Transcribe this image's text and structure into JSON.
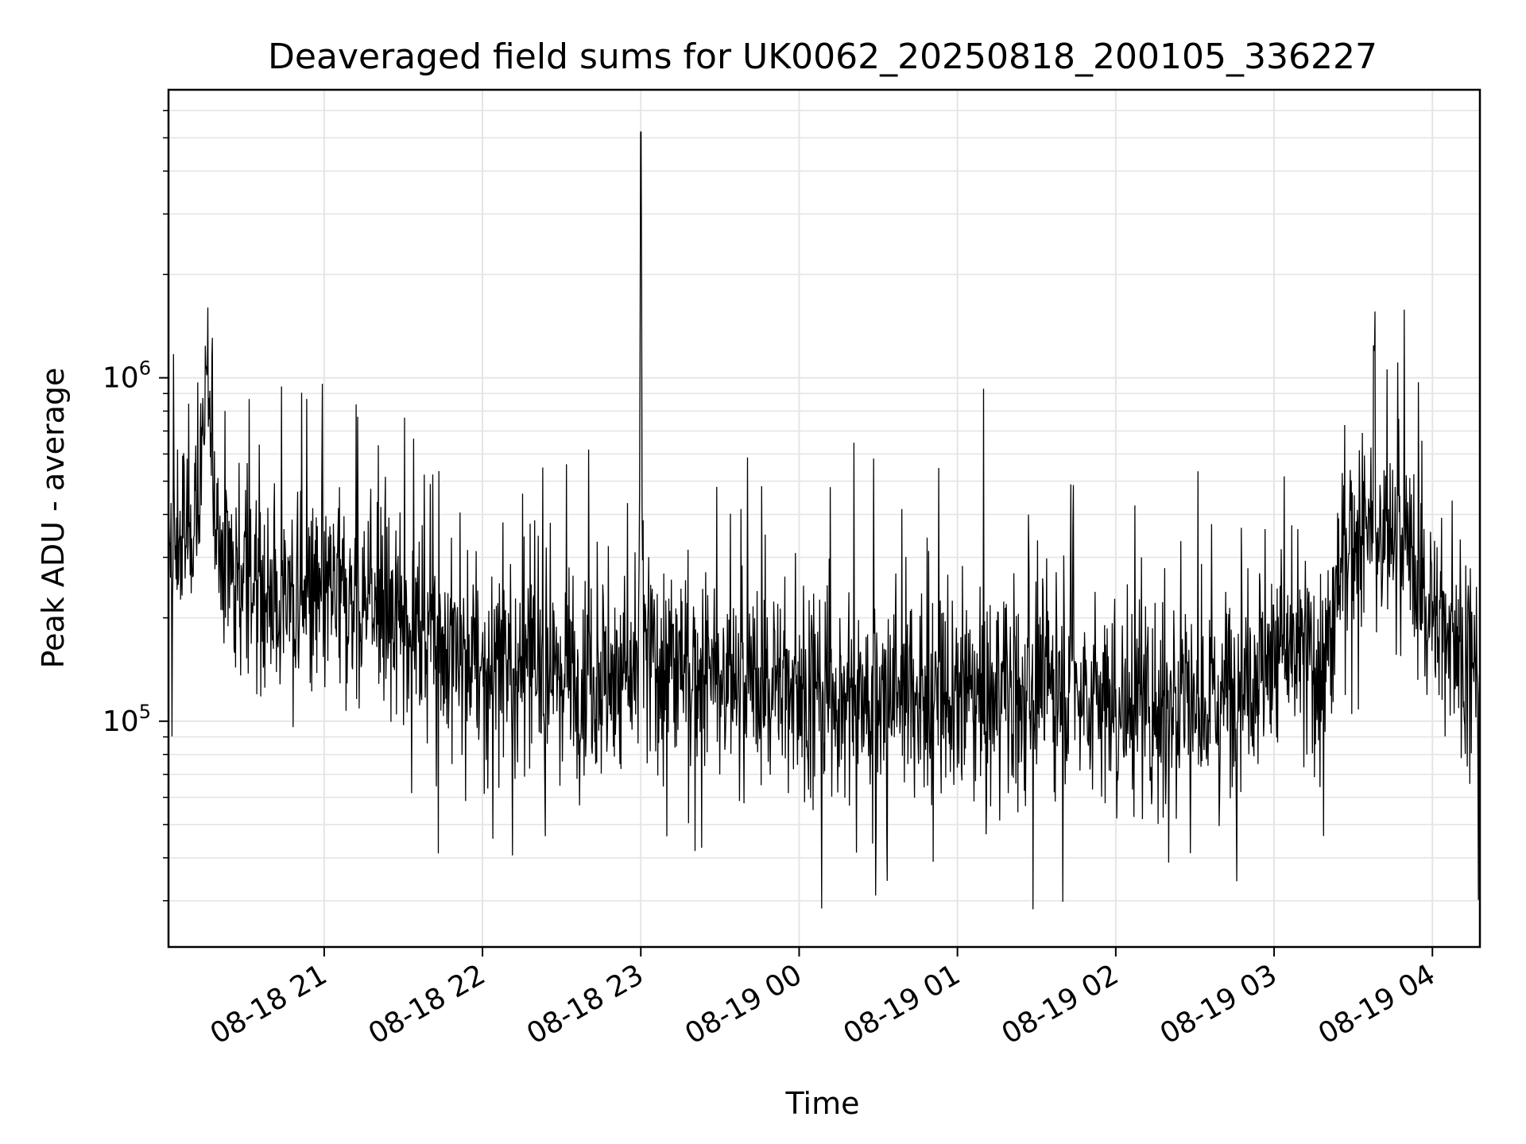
{
  "chart_data": {
    "type": "line",
    "title": "Deaveraged field sums for UK0062_20250818_200105_336227",
    "xlabel": "Time",
    "ylabel": "Peak ADU - average",
    "xlim": [
      "2025-08-18 20:01",
      "2025-08-19 04:18"
    ],
    "ylim": [
      22000,
      6900000
    ],
    "yscale": "log",
    "grid": true,
    "x_ticks": [
      "08-18 21",
      "08-18 22",
      "08-18 23",
      "08-19 00",
      "08-19 01",
      "08-19 02",
      "08-19 03",
      "08-19 04"
    ],
    "y_ticks": [
      {
        "base": "10",
        "exp": "5",
        "value": 100000
      },
      {
        "base": "10",
        "exp": "6",
        "value": 1000000
      }
    ],
    "line_color": "#000000",
    "grid_color": "#e5e5e5",
    "series": [
      {
        "name": "",
        "x": [
          "2025-08-18 20:01",
          "2025-08-18 20:10",
          "2025-08-18 20:16",
          "2025-08-18 20:20",
          "2025-08-18 20:30",
          "2025-08-18 20:40",
          "2025-08-18 20:55",
          "2025-08-18 21:05",
          "2025-08-18 21:20",
          "2025-08-18 21:40",
          "2025-08-18 22:00",
          "2025-08-18 22:20",
          "2025-08-18 22:40",
          "2025-08-18 22:59",
          "2025-08-18 23:00",
          "2025-08-18 23:01",
          "2025-08-18 23:20",
          "2025-08-18 23:40",
          "2025-08-19 00:00",
          "2025-08-19 00:20",
          "2025-08-19 00:40",
          "2025-08-19 01:00",
          "2025-08-19 01:20",
          "2025-08-19 01:40",
          "2025-08-19 02:00",
          "2025-08-19 02:20",
          "2025-08-19 02:40",
          "2025-08-19 03:00",
          "2025-08-19 03:20",
          "2025-08-19 03:38",
          "2025-08-19 03:50",
          "2025-08-19 04:00",
          "2025-08-19 04:10",
          "2025-08-19 04:18"
        ],
        "y": [
          280000,
          400000,
          870000,
          330000,
          260000,
          240000,
          220000,
          230000,
          220000,
          190000,
          140000,
          150000,
          140000,
          130000,
          5200000,
          160000,
          140000,
          130000,
          130000,
          120000,
          125000,
          115000,
          120000,
          130000,
          110000,
          115000,
          120000,
          160000,
          150000,
          1200000,
          330000,
          200000,
          180000,
          130000
        ]
      }
    ]
  }
}
